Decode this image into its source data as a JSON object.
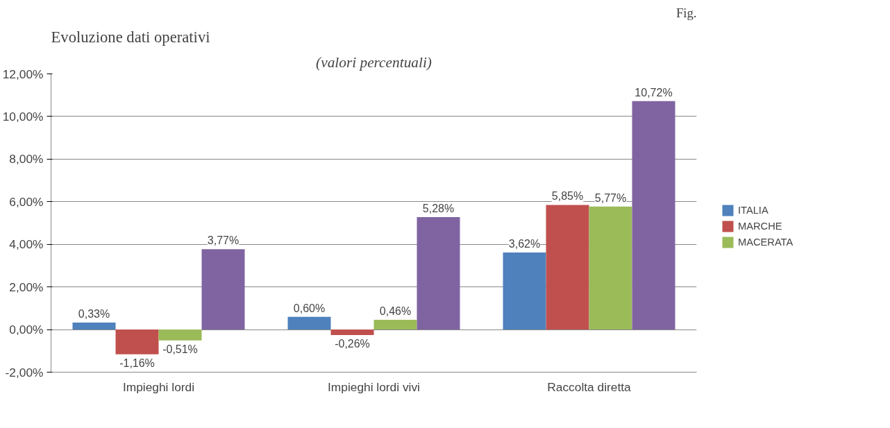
{
  "chart_data": {
    "type": "bar",
    "title": "Evoluzione dati operativi",
    "subtitle": "(valori percentuali)",
    "categories": [
      "Impieghi lordi",
      "Impieghi lordi vivi",
      "Raccolta diretta"
    ],
    "series": [
      {
        "name": "ITALIA",
        "color": "#4f81bd",
        "values": [
          0.33,
          0.6,
          3.62
        ],
        "value_labels": [
          "0,33%",
          "0,60%",
          "3,62%"
        ]
      },
      {
        "name": "MARCHE",
        "color": "#c0504d",
        "values": [
          -1.16,
          -0.26,
          5.85
        ],
        "value_labels": [
          "-1,16%",
          "-0,26%",
          "5,85%"
        ]
      },
      {
        "name": "MACERATA",
        "color": "#9bbb59",
        "values": [
          -0.51,
          0.46,
          5.77
        ],
        "value_labels": [
          "-0,51%",
          "0,46%",
          "5,77%"
        ]
      },
      {
        "color": "#8064a2",
        "values": [
          3.77,
          5.28,
          10.72
        ],
        "value_labels": [
          "3,77%",
          "5,28%",
          "10,72%"
        ]
      }
    ],
    "ylim": [
      -2,
      12
    ],
    "yticks": [
      {
        "value": -2,
        "label": "-2,00%"
      },
      {
        "value": 0,
        "label": "0,00%"
      },
      {
        "value": 2,
        "label": "2,00%"
      },
      {
        "value": 4,
        "label": "4,00%"
      },
      {
        "value": 6,
        "label": "6,00%"
      },
      {
        "value": 8,
        "label": "8,00%"
      },
      {
        "value": 10,
        "label": "10,00%"
      },
      {
        "value": 12,
        "label": "12,00%"
      }
    ],
    "grid": "y",
    "legend": "right",
    "annotations": [
      "Fig."
    ]
  }
}
